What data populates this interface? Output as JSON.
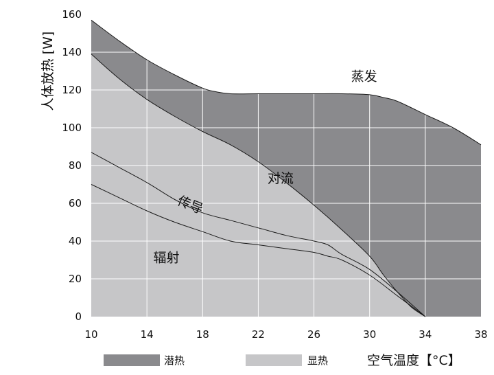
{
  "chart_data": {
    "type": "area",
    "title": "",
    "xlabel": "空气温度【°C】",
    "ylabel": "人体放热 [W]",
    "xlim": [
      10,
      38
    ],
    "ylim": [
      0,
      160
    ],
    "x_ticks": [
      "10",
      "14",
      "18",
      "22",
      "26",
      "30",
      "34",
      "38"
    ],
    "y_ticks": [
      "0",
      "20",
      "40",
      "60",
      "80",
      "100",
      "120",
      "140",
      "160"
    ],
    "grid": true,
    "legend": "bottom",
    "colors": {
      "latent": "#8a8a8d",
      "sensible": "#c6c6c8",
      "grid": "#ffffff",
      "line": "#1a1a1a"
    },
    "series": [
      {
        "name": "潜热",
        "role": "total",
        "x": [
          10,
          12,
          14,
          16,
          18,
          19,
          20,
          22,
          24,
          26,
          28,
          30,
          31,
          32,
          34,
          36,
          38
        ],
        "values": [
          157,
          146,
          136,
          128,
          121,
          119,
          118,
          118,
          118,
          118,
          118,
          117.5,
          116,
          114,
          107,
          100,
          91
        ]
      },
      {
        "name": "显热",
        "role": "sensible",
        "x": [
          10,
          12,
          14,
          16,
          18,
          20,
          22,
          24,
          26,
          28,
          30,
          31,
          32,
          33,
          34
        ],
        "values": [
          139,
          126,
          115,
          106,
          98,
          91,
          82,
          71,
          59,
          46,
          32,
          22,
          13,
          5,
          0
        ]
      },
      {
        "name": "",
        "role": "conduction-boundary",
        "x": [
          10,
          12,
          14,
          16,
          18,
          20,
          22,
          24,
          26,
          27,
          28,
          30,
          32,
          34
        ],
        "values": [
          87,
          79,
          71,
          62,
          55,
          51,
          47,
          43,
          40,
          38,
          33,
          25,
          13,
          0
        ]
      },
      {
        "name": "",
        "role": "radiation-boundary",
        "x": [
          10,
          12,
          14,
          16,
          18,
          20,
          22,
          24,
          26,
          27,
          28,
          30,
          32,
          34
        ],
        "values": [
          70,
          63,
          56,
          50,
          45,
          40,
          38,
          36,
          34,
          32,
          30,
          22,
          11,
          0
        ]
      }
    ],
    "annotations": [
      {
        "text": "蒸发",
        "x": 29.6,
        "y": 125
      },
      {
        "text": "对流",
        "x": 23.6,
        "y": 71
      },
      {
        "text": "传导",
        "x": 17.0,
        "y": 57,
        "rotate": 22
      },
      {
        "text": "辐射",
        "x": 15.4,
        "y": 29
      }
    ]
  }
}
